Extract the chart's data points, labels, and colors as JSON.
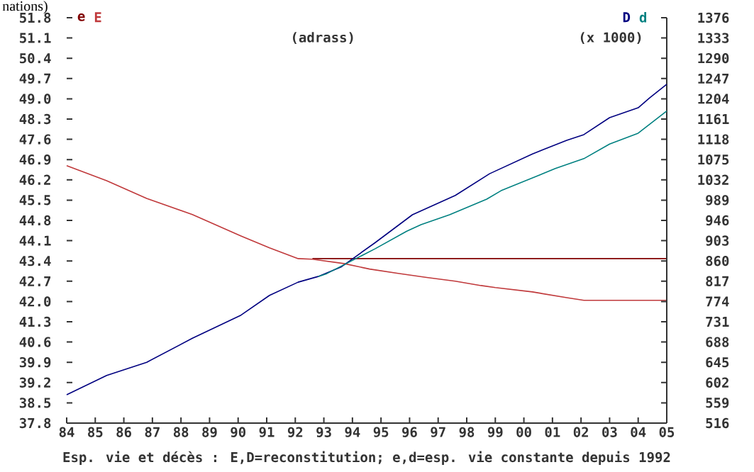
{
  "chart_data": {
    "type": "line",
    "title": "nations)",
    "xlabel": "Esp. vie et décès : E,D=reconstitution; e,d=esp. vie constante depuis 1992",
    "y2label": "(x 1000)",
    "annotations": [
      "(adrass)"
    ],
    "xlim": [
      1984,
      2005
    ],
    "xticks": [
      {
        "value": 1984,
        "label": "84"
      },
      {
        "value": 1985,
        "label": "85"
      },
      {
        "value": 1986,
        "label": "86"
      },
      {
        "value": 1987,
        "label": "87"
      },
      {
        "value": 1988,
        "label": "88"
      },
      {
        "value": 1989,
        "label": "89"
      },
      {
        "value": 1990,
        "label": "90"
      },
      {
        "value": 1991,
        "label": "91"
      },
      {
        "value": 1992,
        "label": "92"
      },
      {
        "value": 1993,
        "label": "93"
      },
      {
        "value": 1994,
        "label": "94"
      },
      {
        "value": 1995,
        "label": "95"
      },
      {
        "value": 1996,
        "label": "96"
      },
      {
        "value": 1997,
        "label": "97"
      },
      {
        "value": 1998,
        "label": "98"
      },
      {
        "value": 1999,
        "label": "99"
      },
      {
        "value": 2000,
        "label": "00"
      },
      {
        "value": 2001,
        "label": "01"
      },
      {
        "value": 2002,
        "label": "02"
      },
      {
        "value": 2003,
        "label": "03"
      },
      {
        "value": 2004,
        "label": "04"
      },
      {
        "value": 2005,
        "label": "05"
      }
    ],
    "ylim": [
      37.8,
      51.8
    ],
    "yticks": [
      37.8,
      38.5,
      39.2,
      39.9,
      40.6,
      41.3,
      {
        "value": 42.0,
        "label": "42.0"
      },
      42.7,
      43.4,
      44.1,
      44.8,
      45.5,
      46.2,
      46.9,
      47.6,
      48.3,
      {
        "value": 49.0,
        "label": "49.0"
      },
      49.7,
      50.4,
      51.1,
      51.8
    ],
    "y2lim": [
      516,
      1376
    ],
    "y2ticks": [
      516,
      559,
      602,
      645,
      688,
      731,
      774,
      817,
      860,
      903,
      946,
      989,
      1032,
      1075,
      1118,
      1161,
      1204,
      1247,
      1290,
      1333,
      1376
    ],
    "legend": "top",
    "line_style": "solid",
    "series": [
      {
        "name": "e",
        "color": "#800000",
        "axis": "y",
        "x": [
          1992.6,
          2005
        ],
        "values": [
          43.48,
          43.48
        ]
      },
      {
        "name": "E",
        "color": "#c0393b",
        "axis": "y",
        "x": [
          1984,
          1985.4,
          1986.8,
          1988.4,
          1990.1,
          1991.1,
          1992.1,
          1992.6,
          1993.7,
          1994.6,
          1995.6,
          1996.6,
          1997.6,
          1998.5,
          1999.0,
          2000.3,
          2001.5,
          2002.1,
          2005
        ],
        "values": [
          46.69,
          46.17,
          45.56,
          45.0,
          44.26,
          43.85,
          43.48,
          43.46,
          43.31,
          43.12,
          42.97,
          42.83,
          42.7,
          42.55,
          42.48,
          42.33,
          42.13,
          42.04,
          42.04
        ]
      },
      {
        "name": "D",
        "color": "#000080",
        "axis": "y2",
        "x": [
          1984,
          1985.4,
          1986.8,
          1988.4,
          1990.1,
          1991.1,
          1992.1,
          1992.8,
          1993.6,
          1994.8,
          1996.1,
          1997.6,
          1998.8,
          2000.3,
          2001.5,
          2002.1,
          2003.0,
          2004.0,
          2004.4,
          2005
        ],
        "values": [
          576,
          617,
          645,
          696,
          745,
          787,
          815,
          827,
          847,
          899,
          958,
          999,
          1045,
          1087,
          1116,
          1128,
          1164,
          1185,
          1206,
          1235
        ]
      },
      {
        "name": "d",
        "color": "#008080",
        "axis": "y2",
        "x": [
          1992.8,
          1993.1,
          1994.8,
          1995.9,
          1996.4,
          1997.4,
          1998.7,
          1999.2,
          2001.1,
          2002.1,
          2003.0,
          2004.0,
          2005
        ],
        "values": [
          827,
          833,
          886,
          923,
          937,
          958,
          991,
          1009,
          1056,
          1077,
          1108,
          1131,
          1178
        ]
      }
    ]
  }
}
